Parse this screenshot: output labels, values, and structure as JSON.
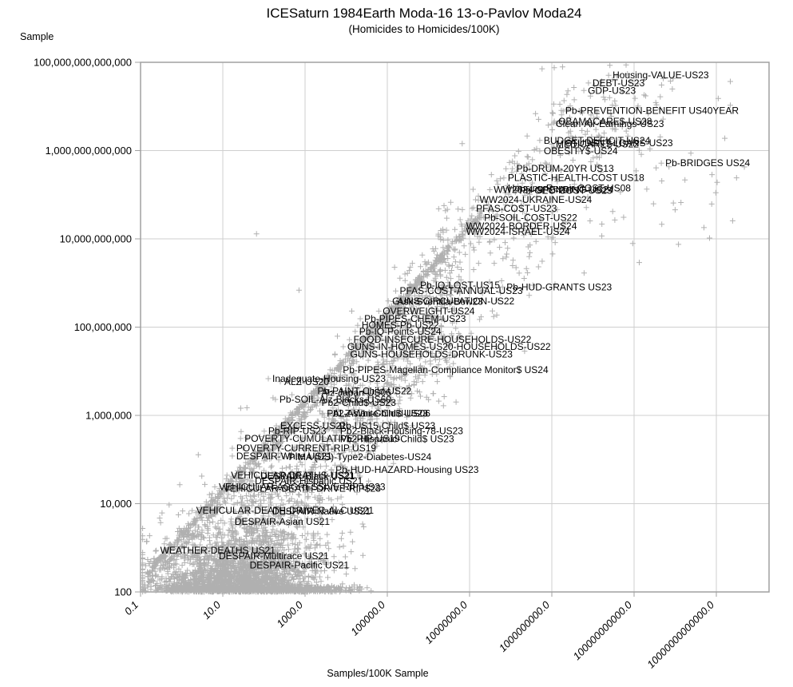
{
  "header": {
    "title": "ICESaturn 1984Earth Moda-16 13-o-Pavlov Moda24",
    "subtitle": "(Homicides to Homicides/100K)"
  },
  "axes": {
    "x": {
      "title": "Samples/100K Sample",
      "ticks": [
        "0.1",
        "10.0",
        "1000.0",
        "100000.0",
        "10000000.0",
        "1000000000.0",
        "100000000000.0",
        "10000000000000.0"
      ],
      "tick_values": [
        0.1,
        10,
        1000,
        100000,
        10000000,
        1000000000,
        100000000000,
        10000000000000
      ]
    },
    "y": {
      "title": "Sample",
      "ticks": [
        "100",
        "10,000",
        "1,000,000",
        "100,000,000",
        "10,000,000,000",
        "1,000,000,000,000",
        "100,000,000,000,000"
      ],
      "tick_values": [
        100,
        10000,
        1000000,
        100000000,
        10000000000,
        1000000000000,
        100000000000000
      ]
    }
  },
  "colors": {
    "marker": "#b0b0b0",
    "grid": "#cfcfcf",
    "border": "#a0a0a0",
    "label_text": "#000000",
    "tick_text": "#000000"
  },
  "chart_data": {
    "type": "scatter",
    "title": "ICESaturn 1984Earth Moda-16 13-o-Pavlov Moda24",
    "subtitle": "(Homicides to Homicides/100K)",
    "xlabel": "Samples/100K Sample",
    "ylabel": "Sample",
    "x_scale": "log",
    "y_scale": "log",
    "xlim": [
      0.1,
      200000000000000
    ],
    "ylim": [
      100,
      100000000000000
    ],
    "grid": true,
    "marker": "plus",
    "labeled_points": [
      {
        "label": "Housing-VALUE-US23",
        "x": 24000000000.0,
        "y": 51000000000000.0
      },
      {
        "label": "DEBT-US23",
        "x": 7800000000.0,
        "y": 34000000000000.0
      },
      {
        "label": "GDP-US23",
        "x": 6000000000.0,
        "y": 23000000000000.0
      },
      {
        "label": "Pb-PREVENTION-BENEFIT US40YEAR",
        "x": 1700000000.0,
        "y": 8100000000000.0
      },
      {
        "label": "OBAMACARE$-US28",
        "x": 1150000000.0,
        "y": 4600000000000.0
      },
      {
        "label": "Clean-Air-Earnings-US23",
        "x": 1000000000.0,
        "y": 4000000000000.0
      },
      {
        "label": "BUDGET-DEFICIT-US24",
        "x": 510000000.0,
        "y": 1700000000000.0
      },
      {
        "label": "STUDENT-LOANS-US23",
        "x": 1700000000.0,
        "y": 1500000000000.0
      },
      {
        "label": "MEDICARE$-US22",
        "x": 1000000000.0,
        "y": 1400000000000.0
      },
      {
        "label": "OBESITY$-US24",
        "x": 510000000.0,
        "y": 980000000000.0
      },
      {
        "label": "Pb-BRIDGES US24",
        "x": 460000000000.0,
        "y": 520000000000.0
      },
      {
        "label": "Pb-DRUM-20YR US13",
        "x": 110000000.0,
        "y": 390000000000.0
      },
      {
        "label": "PLASTIC-HEALTH-COST US18",
        "x": 68000000.0,
        "y": 240000000000.0
      },
      {
        "label": "WW2024-SPENDING-US24",
        "x": 31000000.0,
        "y": 130000000000.0
      },
      {
        "label": "Housing-Repair-COST-US08",
        "x": 68000000.0,
        "y": 140000000000.0
      },
      {
        "label": "Pb-GEO-COST-US23",
        "x": 130000000.0,
        "y": 125000000000.0
      },
      {
        "label": "WW2024-UKRAINE-US24",
        "x": 14000000.0,
        "y": 77000000000.0
      },
      {
        "label": "PFAS-COST-US23",
        "x": 11500000.0,
        "y": 49000000000.0
      },
      {
        "label": "Pb-SOIL-COST-US22",
        "x": 18000000.0,
        "y": 30000000000.0
      },
      {
        "label": "WW2024-BORDER-US24",
        "x": 6600000.0,
        "y": 19500000000.0
      },
      {
        "label": "WW2024-ISRAEL-US24",
        "x": 6600000.0,
        "y": 14500000000.0
      },
      {
        "label": "Pb-IQ-LOST-US15",
        "x": 500000.0,
        "y": 890000000.0
      },
      {
        "label": "Pb-HUD-GRANTS US23",
        "x": 63000000.0,
        "y": 810000000.0
      },
      {
        "label": "PFAS-COST-ANNUAL-US23",
        "x": 160000.0,
        "y": 660000000.0
      },
      {
        "label": "GUNS-CIRCULATION-US22",
        "x": 105000.0,
        "y": 390000000.0
      },
      {
        "label": "Ask-Sventila-Bow23",
        "x": 140000.0,
        "y": 380000000.0
      },
      {
        "label": "OVERWEIGHT-US24",
        "x": 62000.0,
        "y": 230000000.0
      },
      {
        "label": "Pb-PIPES-CHEM-US23",
        "x": 22000.0,
        "y": 155000000.0
      },
      {
        "label": "HOMES-Pb-US22",
        "x": 19000.0,
        "y": 110000000.0
      },
      {
        "label": "Pb-IQ-Points-US24",
        "x": 16600.0,
        "y": 80000000.0
      },
      {
        "label": "FOOD-INSECURE-HOUSEHOLDS-US22",
        "x": 12000.0,
        "y": 52000000.0
      },
      {
        "label": "GUNS-IN-HOMES-US20-HOUSEHOLDS-US22",
        "x": 8500.0,
        "y": 36000000.0
      },
      {
        "label": "GUNS-HOUSEHOLDS-DRUNK-US23",
        "x": 10000.0,
        "y": 24000000.0
      },
      {
        "label": "Pb-PIPES-Magellan-Compliance Monitor$ US24",
        "x": 6600.0,
        "y": 10700000.0
      },
      {
        "label": "Inadequate-Housing-US23",
        "x": 128,
        "y": 6800000.0
      },
      {
        "label": "ALZ-US20",
        "x": 250,
        "y": 5800000.0
      },
      {
        "label": "Pb-PAINT-Child-US22",
        "x": 1600.0,
        "y": 3600000.0
      },
      {
        "label": "Alz-Japan-US06",
        "x": 2000.0,
        "y": 3300000.0
      },
      {
        "label": "Pb-SOIL-Alz-Blacks-US60",
        "x": 190,
        "y": 2300000.0
      },
      {
        "label": "Pb2-Child$-US23",
        "x": 2000.0,
        "y": 1950000.0
      },
      {
        "label": "Pb2-Asian-Child$ US23",
        "x": 2700.0,
        "y": 1120000.0
      },
      {
        "label": "ALZ-White-Child-US06",
        "x": 3800.0,
        "y": 1100000.0
      },
      {
        "label": "EXCESS-US21",
        "x": 200,
        "y": 580000.0
      },
      {
        "label": "Pb-US15-Child$ US23",
        "x": 5500.0,
        "y": 580000.0
      },
      {
        "label": "Pb-RIP-US23",
        "x": 102,
        "y": 440000.0
      },
      {
        "label": "Pb2-Black-Housing-78-US23",
        "x": 5700.0,
        "y": 440000.0
      },
      {
        "label": "POVERTY-CUMULATIVE-RIP-US19",
        "x": 27,
        "y": 300000.0
      },
      {
        "label": "Pb2-Hispanic-Child$ US23",
        "x": 5700.0,
        "y": 290000.0
      },
      {
        "label": "POVERTY-CURRENT-RIP US19",
        "x": 17,
        "y": 180000.0
      },
      {
        "label": "DESPAIR-White US21",
        "x": 17,
        "y": 120000.0
      },
      {
        "label": "PIMA (US)-Type2-Diabetes-US24",
        "x": 320,
        "y": 115000.0
      },
      {
        "label": "Pb-HUD-HAZARD-Housing US23",
        "x": 4400.0,
        "y": 59000.0
      },
      {
        "label": "VEHICULAR-DEATHS-US21",
        "x": 12.6,
        "y": 44000.0
      },
      {
        "label": "DESPAIR-Black US21",
        "x": 66,
        "y": 42000.0
      },
      {
        "label": "DESPAIR-Hispanic US21",
        "x": 48,
        "y": 33000.0
      },
      {
        "label": "VEHICULAR-AGGRESSIVE-RIP US23",
        "x": 6.4,
        "y": 24000.0
      },
      {
        "label": "VEHICULAR-DEATH-DRIVE-RIP$23",
        "x": 8.3,
        "y": 22000.0
      },
      {
        "label": "VEHICULAR-DEATH-DRIVER-ALC US21",
        "x": 1.8,
        "y": 7000.0
      },
      {
        "label": "DESPAIR-Native US21",
        "x": 128,
        "y": 6700.0
      },
      {
        "label": "DESPAIR-Asian US21",
        "x": 15.6,
        "y": 3900.0
      },
      {
        "label": "WEATHER-DEATHS US21",
        "x": 0.24,
        "y": 870
      },
      {
        "label": "DESPAIR-Multirace US21",
        "x": 6.4,
        "y": 650
      },
      {
        "label": "DESPAIR-Pacific US21",
        "x": 36,
        "y": 400
      }
    ],
    "background_cloud": {
      "seed": 20240613,
      "clusters": [
        {
          "type": "band",
          "name": "diagonal-streak",
          "count": 700,
          "lx_min": -0.85,
          "lx_max": 7.3,
          "slope": 1,
          "intercept": 3.28,
          "sigma": 0.055
        },
        {
          "type": "band",
          "name": "diagonal-streak-2",
          "count": 220,
          "lx_min": -0.85,
          "lx_max": 5.6,
          "slope": 1,
          "intercept": 3.02,
          "sigma": 0.05
        },
        {
          "type": "band",
          "name": "streak-extension",
          "count": 160,
          "lx_min": 5.2,
          "lx_max": 9.6,
          "slope": 1,
          "intercept": 3.28,
          "sigma": 0.35
        },
        {
          "type": "blob",
          "name": "main-blob",
          "count": 2300,
          "lx_mean": 1.35,
          "lx_sigma": 1.05,
          "lx_min": -0.95,
          "lx_max": 4.9,
          "decay": 0.42,
          "grow": 0.25
        },
        {
          "type": "floor",
          "name": "bottom-smear",
          "count": 550,
          "lx_min": -0.55,
          "lx_max": 4.7,
          "ly_min": 2.0,
          "ly_max": 2.12
        },
        {
          "type": "band",
          "name": "mid-scatter",
          "count": 850,
          "lx_min": 1.2,
          "lx_max": 6.8,
          "slope": 1.05,
          "intercept": 1.5,
          "sigma": 0.8
        },
        {
          "type": "band",
          "name": "upper-scatter",
          "count": 300,
          "lx_min": 5.0,
          "lx_max": 12.0,
          "slope": 1.0,
          "intercept": 2.3,
          "sigma": 1.05
        },
        {
          "type": "uniform",
          "name": "right-sparse",
          "count": 55,
          "lx_min": 8.3,
          "lx_max": 13.7,
          "ly_min": 9.3,
          "ly_max": 13.9
        }
      ],
      "outliers": [
        [
          66,
          13000000000.0
        ],
        [
          5000000000000.0,
          18000000000.0
        ],
        [
          1200000000000.0,
          7500000000.0
        ]
      ]
    }
  }
}
